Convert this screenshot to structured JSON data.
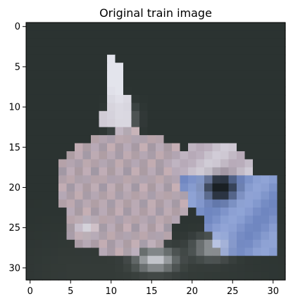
{
  "chart_data": {
    "type": "heatmap",
    "title": "Original train image",
    "xlabel": "",
    "ylabel": "",
    "xlim": [
      -0.5,
      31.5
    ],
    "ylim": [
      31.5,
      -0.5
    ],
    "grid": false,
    "x_ticks": [
      {
        "value": 0,
        "label": "0"
      },
      {
        "value": 5,
        "label": "5"
      },
      {
        "value": 10,
        "label": "10"
      },
      {
        "value": 15,
        "label": "15"
      },
      {
        "value": 20,
        "label": "20"
      },
      {
        "value": 25,
        "label": "25"
      },
      {
        "value": 30,
        "label": "30"
      }
    ],
    "y_ticks": [
      {
        "value": 0,
        "label": "0"
      },
      {
        "value": 5,
        "label": "5"
      },
      {
        "value": 10,
        "label": "10"
      },
      {
        "value": 15,
        "label": "15"
      },
      {
        "value": 20,
        "label": "20"
      },
      {
        "value": 25,
        "label": "25"
      },
      {
        "value": 30,
        "label": "30"
      }
    ],
    "image": {
      "rows": 32,
      "cols": 32,
      "channels": "rgb",
      "colors": {
        "background": "#2b3331",
        "shadow": "#3e4440",
        "body": "#b7aab8",
        "body_warm": "#c8b0b4",
        "highlight": "#e3e4ec",
        "blue": "#6f86c0",
        "blue_light": "#90a4d6",
        "dark": "#1a2024",
        "edge": "#5a5f6a"
      }
    }
  }
}
